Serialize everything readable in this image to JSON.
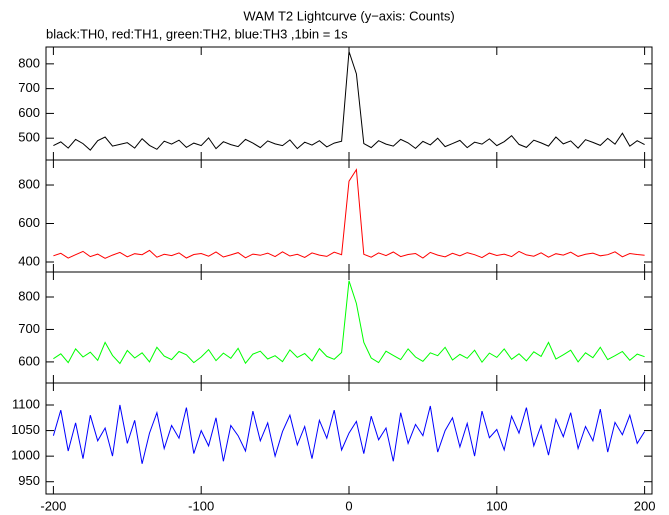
{
  "title": "WAM T2 Lightcurve (y−axis: Counts)",
  "subtitle": "black:TH0, red:TH1, green:TH2, blue:TH3 ,1bin = 1s",
  "chart_data": [
    {
      "type": "line",
      "color": "#000000",
      "x": [
        -200,
        -195,
        -190,
        -185,
        -180,
        -175,
        -170,
        -165,
        -160,
        -155,
        -150,
        -145,
        -140,
        -135,
        -130,
        -125,
        -120,
        -115,
        -110,
        -105,
        -100,
        -95,
        -90,
        -85,
        -80,
        -75,
        -70,
        -65,
        -60,
        -55,
        -50,
        -45,
        -40,
        -35,
        -30,
        -25,
        -20,
        -15,
        -10,
        -5,
        0,
        5,
        10,
        15,
        20,
        25,
        30,
        35,
        40,
        45,
        50,
        55,
        60,
        65,
        70,
        75,
        80,
        85,
        90,
        95,
        100,
        105,
        110,
        115,
        120,
        125,
        130,
        135,
        140,
        145,
        150,
        155,
        160,
        165,
        170,
        175,
        180,
        185,
        190,
        195,
        200
      ],
      "values": [
        470,
        485,
        460,
        495,
        478,
        452,
        490,
        505,
        468,
        475,
        482,
        460,
        498,
        471,
        455,
        488,
        476,
        492,
        463,
        480,
        470,
        501,
        458,
        486,
        474,
        466,
        495,
        480,
        462,
        489,
        477,
        470,
        493,
        458,
        484,
        472,
        490,
        465,
        480,
        488,
        850,
        760,
        478,
        462,
        490,
        476,
        468,
        495,
        481,
        459,
        487,
        473,
        500,
        466,
        478,
        491,
        462,
        484,
        476,
        497,
        470,
        486,
        510,
        475,
        463,
        492,
        481,
        468,
        505,
        477,
        489,
        460,
        494,
        483,
        471,
        499,
        476,
        520,
        468,
        490,
        474
      ],
      "xlim": [
        -205,
        205
      ],
      "xticks": [
        -200,
        -100,
        0,
        100,
        200
      ],
      "ylim": [
        412,
        868
      ],
      "yticks": [
        500,
        600,
        700,
        800
      ]
    },
    {
      "type": "line",
      "color": "#ff0000",
      "x": [
        -200,
        -195,
        -190,
        -185,
        -180,
        -175,
        -170,
        -165,
        -160,
        -155,
        -150,
        -145,
        -140,
        -135,
        -130,
        -125,
        -120,
        -115,
        -110,
        -105,
        -100,
        -95,
        -90,
        -85,
        -80,
        -75,
        -70,
        -65,
        -60,
        -55,
        -50,
        -45,
        -40,
        -35,
        -30,
        -25,
        -20,
        -15,
        -10,
        -5,
        0,
        5,
        10,
        15,
        20,
        25,
        30,
        35,
        40,
        45,
        50,
        55,
        60,
        65,
        70,
        75,
        80,
        85,
        90,
        95,
        100,
        105,
        110,
        115,
        120,
        125,
        130,
        135,
        140,
        145,
        150,
        155,
        160,
        165,
        170,
        175,
        180,
        185,
        190,
        195,
        200
      ],
      "values": [
        432,
        445,
        420,
        438,
        455,
        428,
        441,
        419,
        436,
        450,
        427,
        443,
        438,
        460,
        425,
        440,
        433,
        447,
        421,
        439,
        444,
        430,
        452,
        426,
        437,
        449,
        422,
        441,
        435,
        446,
        428,
        453,
        431,
        440,
        424,
        447,
        436,
        429,
        451,
        438,
        820,
        880,
        440,
        425,
        447,
        433,
        452,
        428,
        439,
        444,
        421,
        450,
        436,
        427,
        445,
        432,
        449,
        438,
        423,
        446,
        434,
        441,
        428,
        455,
        437,
        430,
        448,
        425,
        443,
        436,
        451,
        429,
        440,
        446,
        432,
        438,
        453,
        427,
        444,
        439,
        435
      ],
      "xlim": [
        -205,
        205
      ],
      "xticks": [
        -200,
        -100,
        0,
        100,
        200
      ],
      "ylim": [
        348,
        930
      ],
      "yticks": [
        400,
        600,
        800
      ]
    },
    {
      "type": "line",
      "color": "#00ff00",
      "x": [
        -200,
        -195,
        -190,
        -185,
        -180,
        -175,
        -170,
        -165,
        -160,
        -155,
        -150,
        -145,
        -140,
        -135,
        -130,
        -125,
        -120,
        -115,
        -110,
        -105,
        -100,
        -95,
        -90,
        -85,
        -80,
        -75,
        -70,
        -65,
        -60,
        -55,
        -50,
        -45,
        -40,
        -35,
        -30,
        -25,
        -20,
        -15,
        -10,
        -5,
        0,
        5,
        10,
        15,
        20,
        25,
        30,
        35,
        40,
        45,
        50,
        55,
        60,
        65,
        70,
        75,
        80,
        85,
        90,
        95,
        100,
        105,
        110,
        115,
        120,
        125,
        130,
        135,
        140,
        145,
        150,
        155,
        160,
        165,
        170,
        175,
        180,
        185,
        190,
        195,
        200
      ],
      "values": [
        610,
        625,
        598,
        640,
        615,
        630,
        605,
        660,
        620,
        595,
        635,
        612,
        628,
        600,
        645,
        618,
        607,
        632,
        622,
        598,
        615,
        638,
        604,
        627,
        611,
        642,
        596,
        624,
        633,
        609,
        619,
        601,
        637,
        614,
        626,
        603,
        641,
        617,
        608,
        629,
        850,
        780,
        660,
        612,
        598,
        633,
        620,
        607,
        640,
        615,
        602,
        628,
        619,
        645,
        606,
        623,
        611,
        636,
        599,
        627,
        614,
        640,
        608,
        625,
        603,
        631,
        617,
        660,
        609,
        622,
        636,
        600,
        628,
        613,
        645,
        607,
        619,
        632,
        605,
        624,
        616
      ],
      "xlim": [
        -205,
        205
      ],
      "xticks": [
        -200,
        -100,
        0,
        100,
        200
      ],
      "ylim": [
        535,
        877
      ],
      "yticks": [
        600,
        700,
        800
      ]
    },
    {
      "type": "line",
      "color": "#0000ff",
      "x": [
        -200,
        -195,
        -190,
        -185,
        -180,
        -175,
        -170,
        -165,
        -160,
        -155,
        -150,
        -145,
        -140,
        -135,
        -130,
        -125,
        -120,
        -115,
        -110,
        -105,
        -100,
        -95,
        -90,
        -85,
        -80,
        -75,
        -70,
        -65,
        -60,
        -55,
        -50,
        -45,
        -40,
        -35,
        -30,
        -25,
        -20,
        -15,
        -10,
        -5,
        0,
        5,
        10,
        15,
        20,
        25,
        30,
        35,
        40,
        45,
        50,
        55,
        60,
        65,
        70,
        75,
        80,
        85,
        90,
        95,
        100,
        105,
        110,
        115,
        120,
        125,
        130,
        135,
        140,
        145,
        150,
        155,
        160,
        165,
        170,
        175,
        180,
        185,
        190,
        195,
        200
      ],
      "values": [
        1040,
        1090,
        1010,
        1065,
        995,
        1080,
        1030,
        1055,
        1000,
        1100,
        1025,
        1070,
        985,
        1045,
        1085,
        1015,
        1060,
        1035,
        1095,
        1005,
        1050,
        1020,
        1075,
        990,
        1060,
        1040,
        1010,
        1088,
        1030,
        1065,
        1000,
        1048,
        1080,
        1022,
        1058,
        995,
        1070,
        1035,
        1090,
        1012,
        1045,
        1068,
        1005,
        1078,
        1032,
        1055,
        990,
        1085,
        1025,
        1062,
        1040,
        1098,
        1008,
        1050,
        1075,
        1018,
        1064,
        1000,
        1088,
        1036,
        1052,
        1012,
        1078,
        1045,
        1095,
        1020,
        1060,
        1002,
        1072,
        1038,
        1085,
        1015,
        1058,
        1030,
        1092,
        1008,
        1066,
        1042,
        1080,
        1025,
        1048
      ],
      "xlim": [
        -205,
        205
      ],
      "xticks": [
        -200,
        -100,
        0,
        100,
        200
      ],
      "ylim": [
        926,
        1143
      ],
      "yticks": [
        950,
        1000,
        1050,
        1100
      ]
    }
  ]
}
